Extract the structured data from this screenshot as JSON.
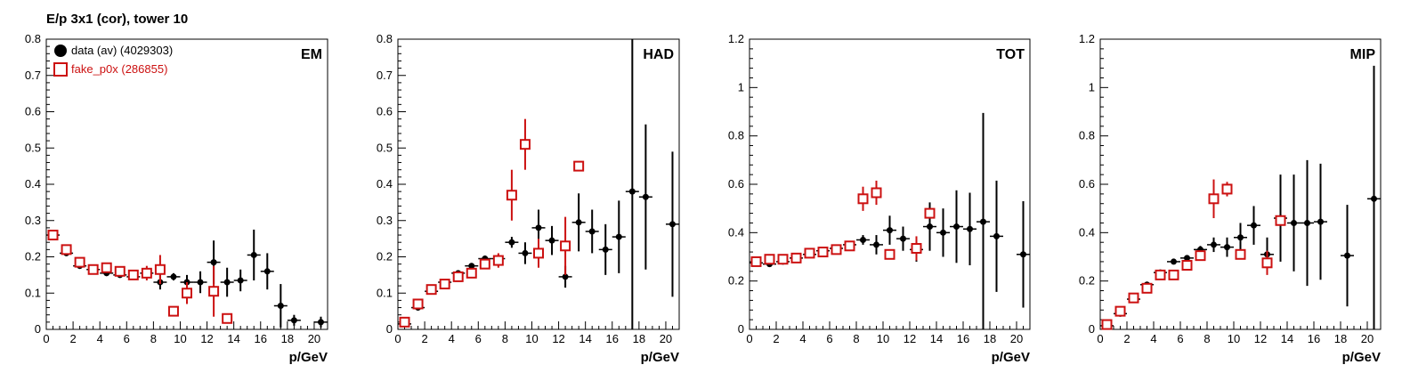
{
  "title": "E/p 3x1 (cor), tower 10",
  "colors": {
    "data": "#000000",
    "fake": "#cc1111"
  },
  "legend": [
    {
      "label": "data (av) (4029303)",
      "marker": "filled-circle",
      "color": "#000000"
    },
    {
      "label": "fake_p0x (286855)",
      "marker": "open-square",
      "color": "#cc1111"
    }
  ],
  "chart_data": [
    {
      "type": "scatter",
      "title": "EM",
      "xlabel": "p/GeV",
      "ylabel": "",
      "xlim": [
        0,
        21
      ],
      "ylim": [
        0,
        0.8
      ],
      "xticks": [
        "0",
        "2",
        "4",
        "6",
        "8",
        "10",
        "12",
        "14",
        "16",
        "18",
        "20"
      ],
      "yticks": [
        "0",
        "0.1",
        "0.2",
        "0.3",
        "0.4",
        "0.5",
        "0.6",
        "0.7",
        "0.8"
      ],
      "series": [
        {
          "name": "data (av) (4029303)",
          "x": [
            0.5,
            1.5,
            2.5,
            3.5,
            4.5,
            5.5,
            6.5,
            7.5,
            8.5,
            9.5,
            10.5,
            11.5,
            12.5,
            13.5,
            14.5,
            15.5,
            16.5,
            17.5,
            18.5,
            20.5
          ],
          "y": [
            0.26,
            0.21,
            0.175,
            0.165,
            0.155,
            0.15,
            0.145,
            0.155,
            0.13,
            0.145,
            0.13,
            0.13,
            0.185,
            0.13,
            0.135,
            0.205,
            0.16,
            0.065,
            0.025,
            0.02
          ],
          "err": [
            0.01,
            0.005,
            0.005,
            0.005,
            0.005,
            0.005,
            0.008,
            0.01,
            0.02,
            0.01,
            0.02,
            0.03,
            0.06,
            0.04,
            0.03,
            0.07,
            0.05,
            0.06,
            0.015,
            0.015
          ]
        },
        {
          "name": "fake_p0x (286855)",
          "x": [
            0.5,
            1.5,
            2.5,
            3.5,
            4.5,
            5.5,
            6.5,
            7.5,
            8.5,
            9.5,
            10.5,
            12.5,
            13.5
          ],
          "y": [
            0.26,
            0.22,
            0.185,
            0.165,
            0.17,
            0.16,
            0.15,
            0.155,
            0.165,
            0.05,
            0.1,
            0.105,
            0.03
          ],
          "err": [
            0.01,
            0.01,
            0.01,
            0.01,
            0.01,
            0.01,
            0.01,
            0.02,
            0.04,
            0.01,
            0.03,
            0.07,
            0.01
          ]
        }
      ]
    },
    {
      "type": "scatter",
      "title": "HAD",
      "xlabel": "p/GeV",
      "ylabel": "",
      "xlim": [
        0,
        21
      ],
      "ylim": [
        0,
        0.8
      ],
      "xticks": [
        "0",
        "2",
        "4",
        "6",
        "8",
        "10",
        "12",
        "14",
        "16",
        "18",
        "20"
      ],
      "yticks": [
        "0",
        "0.1",
        "0.2",
        "0.3",
        "0.4",
        "0.5",
        "0.6",
        "0.7",
        "0.8"
      ],
      "series": [
        {
          "name": "data (av) (4029303)",
          "x": [
            0.5,
            1.5,
            2.5,
            3.5,
            4.5,
            5.5,
            6.5,
            7.5,
            8.5,
            9.5,
            10.5,
            11.5,
            12.5,
            13.5,
            14.5,
            15.5,
            16.5,
            17.5,
            18.5,
            20.5
          ],
          "y": [
            0.015,
            0.06,
            0.105,
            0.13,
            0.155,
            0.175,
            0.195,
            0.195,
            0.24,
            0.21,
            0.28,
            0.245,
            0.145,
            0.295,
            0.27,
            0.22,
            0.255,
            0.38,
            0.365,
            0.29
          ],
          "err": [
            0.005,
            0.005,
            0.005,
            0.005,
            0.005,
            0.008,
            0.008,
            0.01,
            0.015,
            0.03,
            0.05,
            0.04,
            0.03,
            0.08,
            0.06,
            0.07,
            0.1,
            0.42,
            0.2,
            0.2
          ]
        },
        {
          "name": "fake_p0x (286855)",
          "x": [
            0.5,
            1.5,
            2.5,
            3.5,
            4.5,
            5.5,
            6.5,
            7.5,
            8.5,
            9.5,
            10.5,
            12.5,
            13.5
          ],
          "y": [
            0.02,
            0.07,
            0.11,
            0.125,
            0.145,
            0.155,
            0.18,
            0.19,
            0.37,
            0.51,
            0.21,
            0.23,
            0.45
          ],
          "err": [
            0.005,
            0.01,
            0.01,
            0.01,
            0.01,
            0.01,
            0.01,
            0.02,
            0.07,
            0.07,
            0.04,
            0.08,
            0.01
          ]
        }
      ]
    },
    {
      "type": "scatter",
      "title": "TOT",
      "xlabel": "p/GeV",
      "ylabel": "",
      "xlim": [
        0,
        21
      ],
      "ylim": [
        0,
        1.2
      ],
      "xticks": [
        "0",
        "2",
        "4",
        "6",
        "8",
        "10",
        "12",
        "14",
        "16",
        "18",
        "20"
      ],
      "yticks": [
        "0",
        "0.2",
        "0.4",
        "0.6",
        "0.8",
        "1",
        "1.2"
      ],
      "series": [
        {
          "name": "data (av) (4029303)",
          "x": [
            0.5,
            1.5,
            2.5,
            3.5,
            4.5,
            5.5,
            6.5,
            7.5,
            8.5,
            9.5,
            10.5,
            11.5,
            12.5,
            13.5,
            14.5,
            15.5,
            16.5,
            17.5,
            18.5,
            20.5
          ],
          "y": [
            0.275,
            0.27,
            0.28,
            0.295,
            0.31,
            0.325,
            0.335,
            0.35,
            0.37,
            0.35,
            0.41,
            0.375,
            0.33,
            0.425,
            0.4,
            0.425,
            0.415,
            0.445,
            0.385,
            0.31
          ],
          "err": [
            0.005,
            0.005,
            0.005,
            0.005,
            0.005,
            0.008,
            0.01,
            0.01,
            0.02,
            0.04,
            0.06,
            0.05,
            0.05,
            0.1,
            0.1,
            0.15,
            0.15,
            0.45,
            0.23,
            0.22
          ]
        },
        {
          "name": "fake_p0x (286855)",
          "x": [
            0.5,
            1.5,
            2.5,
            3.5,
            4.5,
            5.5,
            6.5,
            7.5,
            8.5,
            9.5,
            10.5,
            12.5,
            13.5
          ],
          "y": [
            0.28,
            0.29,
            0.29,
            0.295,
            0.315,
            0.32,
            0.33,
            0.345,
            0.54,
            0.565,
            0.31,
            0.335,
            0.48
          ],
          "err": [
            0.01,
            0.01,
            0.01,
            0.01,
            0.01,
            0.01,
            0.01,
            0.02,
            0.05,
            0.05,
            0.02,
            0.05,
            0.02
          ]
        }
      ]
    },
    {
      "type": "scatter",
      "title": "MIP",
      "xlabel": "p/GeV",
      "ylabel": "",
      "xlim": [
        0,
        21
      ],
      "ylim": [
        0,
        1.2
      ],
      "xticks": [
        "0",
        "2",
        "4",
        "6",
        "8",
        "10",
        "12",
        "14",
        "16",
        "18",
        "20"
      ],
      "yticks": [
        "0",
        "0.2",
        "0.4",
        "0.6",
        "0.8",
        "1",
        "1.2"
      ],
      "series": [
        {
          "name": "data (av) (4029303)",
          "x": [
            0.5,
            1.5,
            2.5,
            3.5,
            4.5,
            5.5,
            6.5,
            7.5,
            8.5,
            9.5,
            10.5,
            11.5,
            12.5,
            13.5,
            14.5,
            15.5,
            16.5,
            18.5,
            20.5
          ],
          "y": [
            0.015,
            0.065,
            0.125,
            0.185,
            0.235,
            0.28,
            0.295,
            0.33,
            0.35,
            0.34,
            0.38,
            0.43,
            0.31,
            0.46,
            0.44,
            0.44,
            0.445,
            0.305,
            0.54
          ],
          "err": [
            0.005,
            0.005,
            0.005,
            0.005,
            0.008,
            0.008,
            0.01,
            0.015,
            0.03,
            0.04,
            0.06,
            0.08,
            0.07,
            0.18,
            0.2,
            0.26,
            0.24,
            0.21,
            0.55
          ]
        },
        {
          "name": "fake_p0x (286855)",
          "x": [
            0.5,
            1.5,
            2.5,
            3.5,
            4.5,
            5.5,
            6.5,
            7.5,
            8.5,
            9.5,
            10.5,
            12.5,
            13.5
          ],
          "y": [
            0.02,
            0.075,
            0.13,
            0.17,
            0.225,
            0.225,
            0.265,
            0.305,
            0.54,
            0.58,
            0.31,
            0.275,
            0.45
          ],
          "err": [
            0.005,
            0.01,
            0.01,
            0.01,
            0.01,
            0.01,
            0.01,
            0.02,
            0.08,
            0.03,
            0.02,
            0.05,
            0.02
          ]
        }
      ]
    }
  ]
}
